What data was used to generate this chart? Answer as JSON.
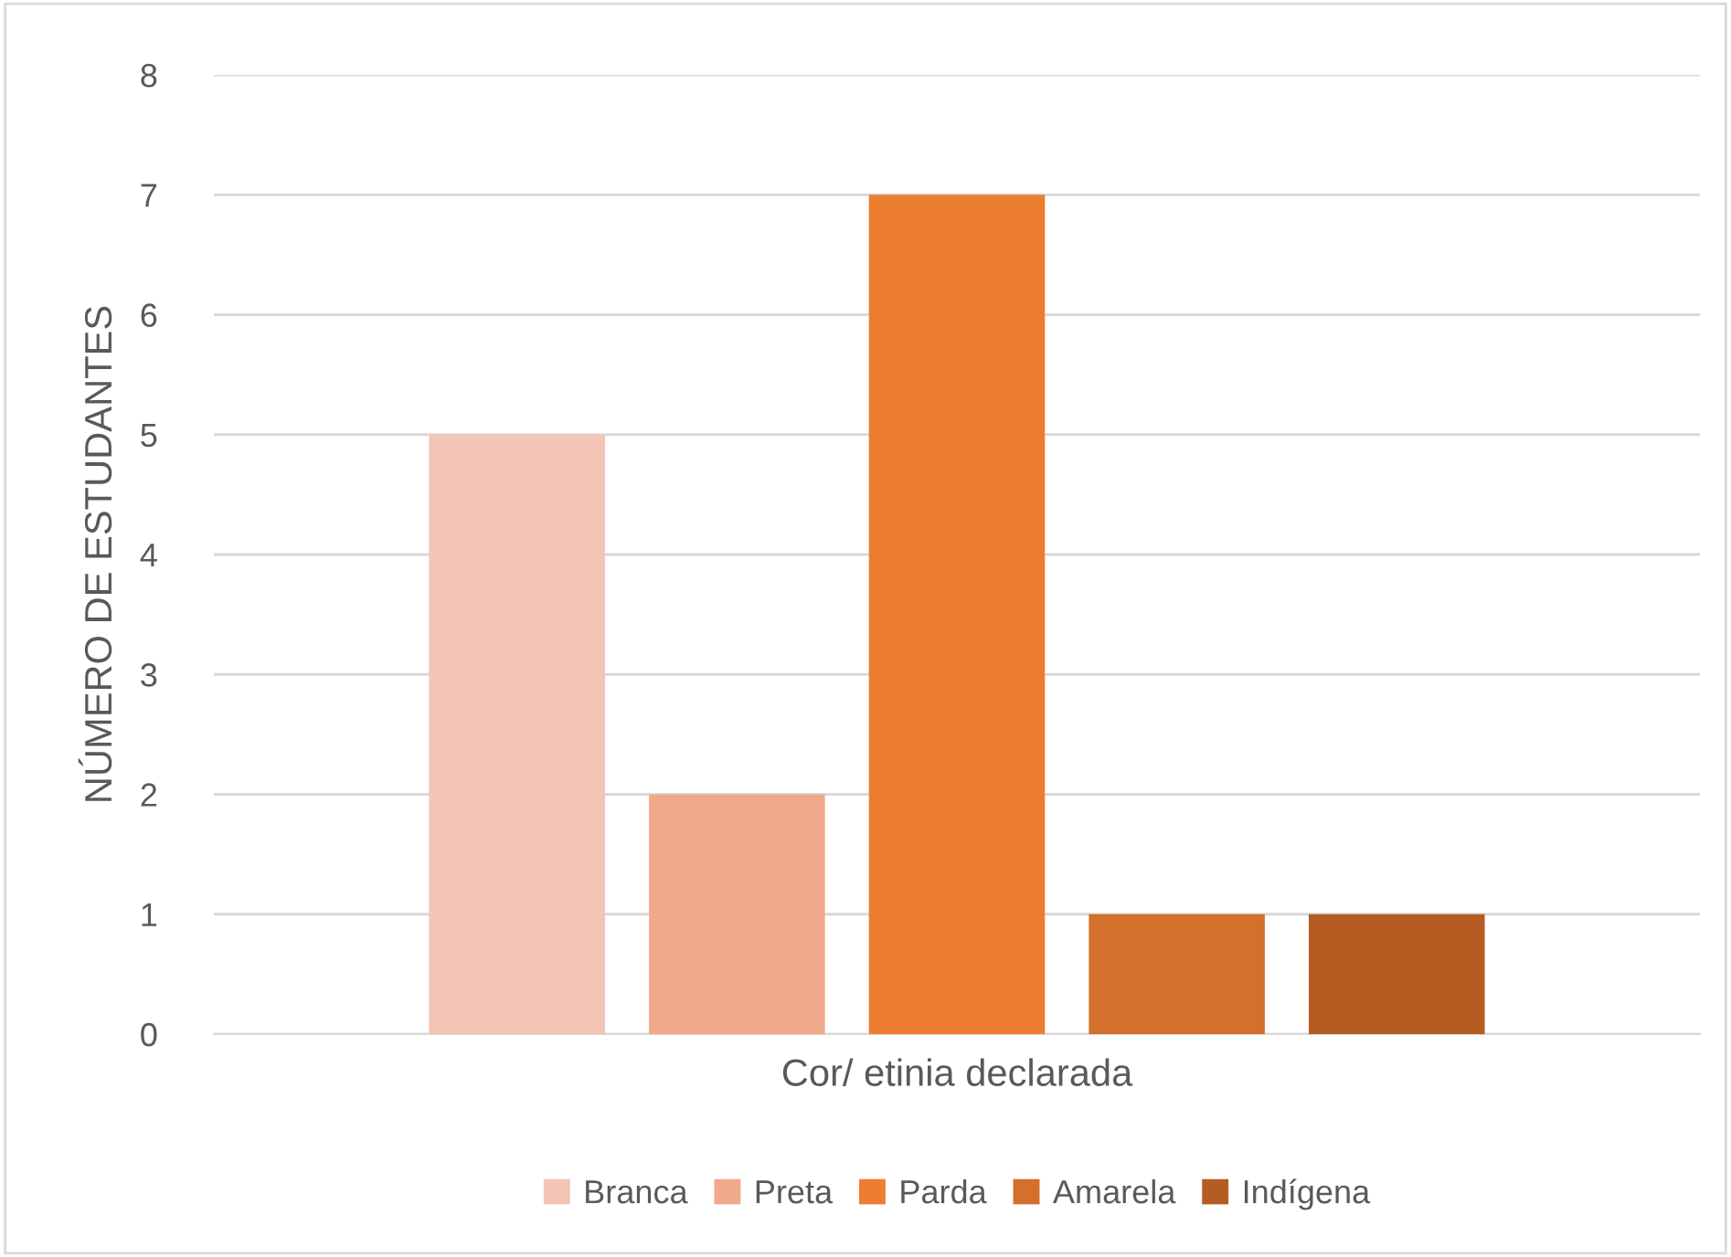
{
  "chart_data": {
    "type": "bar",
    "xlabel": "Cor/ etinia declarada",
    "ylabel": "NÚMERO DE ESTUDANTES",
    "categories": [
      null
    ],
    "series": [
      {
        "name": "Branca",
        "color": "#f4c4b4",
        "values": [
          5
        ]
      },
      {
        "name": "Preta",
        "color": "#f0a98b",
        "values": [
          2
        ]
      },
      {
        "name": "Parda",
        "color": "#ed7d31",
        "values": [
          7
        ]
      },
      {
        "name": "Amarela",
        "color": "#d46f2c",
        "values": [
          1
        ]
      },
      {
        "name": "Indígena",
        "color": "#b55c22",
        "values": [
          1
        ]
      }
    ],
    "ylim": [
      0,
      8
    ],
    "yticks": [
      0,
      1,
      2,
      3,
      4,
      5,
      6,
      7,
      8
    ],
    "grid": "y",
    "legend": "bottom"
  }
}
